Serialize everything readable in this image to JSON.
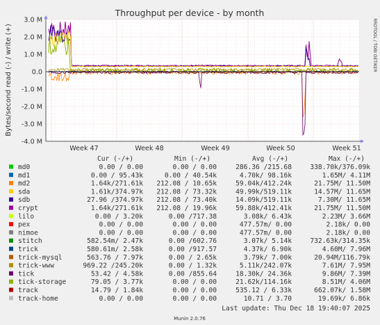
{
  "chart_data": {
    "type": "line",
    "title": "Throughput per device - by month",
    "ylabel": "Bytes/second read (-) / write (+)",
    "side_label": "RRDTOOL / TOBI OETIKER",
    "y_ticks": [
      "3.0 M",
      "2.0 M",
      "1.0 M",
      "0.0",
      "-1.0 M",
      "-2.0 M",
      "-3.0 M",
      "-4.0 M"
    ],
    "ylim": [
      -4.0,
      3.0
    ],
    "x_ticks": [
      "Week 47",
      "Week 48",
      "Week 49",
      "Week 50",
      "Week 51"
    ],
    "grid": true,
    "columns": [
      "Cur (-/+)",
      "Min (-/+)",
      "Avg (-/+)",
      "Max (-/+)"
    ],
    "series": [
      {
        "name": "md0",
        "color": "#00cc00",
        "cur": "0.00 /  0.00",
        "min": "0.00 /  0.00",
        "avg": "286.36 /215.68",
        "max": "338.70k/376.09k"
      },
      {
        "name": "md1",
        "color": "#0066b3",
        "cur": "0.00 / 95.43k",
        "min": "0.00 / 40.54k",
        "avg": "4.70k/ 98.16k",
        "max": "1.65M/  4.11M"
      },
      {
        "name": "md2",
        "color": "#ff8000",
        "cur": "1.64k/271.61k",
        "min": "212.08 / 10.65k",
        "avg": "59.04k/412.24k",
        "max": "21.75M/ 11.50M"
      },
      {
        "name": "sda",
        "color": "#ffcc00",
        "cur": "1.61k/374.97k",
        "min": "212.08 / 73.32k",
        "avg": "49.99k/519.11k",
        "max": "14.57M/ 11.65M"
      },
      {
        "name": "sdb",
        "color": "#330099",
        "cur": "27.96 /374.97k",
        "min": "212.08 / 73.40k",
        "avg": "14.09k/519.11k",
        "max": "7.30M/ 11.65M"
      },
      {
        "name": "crypt",
        "color": "#990099",
        "cur": "1.64k/271.61k",
        "min": "212.08 / 19.96k",
        "avg": "59.88k/412.41k",
        "max": "21.75M/ 11.50M"
      },
      {
        "name": "lilo",
        "color": "#ccff00",
        "cur": "0.00 /  3.20k",
        "min": "0.00 /717.38",
        "avg": "3.08k/  6.43k",
        "max": "2.23M/  3.66M"
      },
      {
        "name": "pex",
        "color": "#ff0000",
        "cur": "0.00 /  0.00",
        "min": "0.00 /  0.00",
        "avg": "477.57m/  0.00",
        "max": "2.18k/  0.00"
      },
      {
        "name": "nimoe",
        "color": "#808080",
        "cur": "0.00 /  0.00",
        "min": "0.00 /  0.00",
        "avg": "477.57m/  0.00",
        "max": "2.18k/  0.00"
      },
      {
        "name": "stitch",
        "color": "#008f00",
        "cur": "582.54m/  2.47k",
        "min": "0.00 /602.76",
        "avg": "3.07k/  5.14k",
        "max": "732.63k/314.35k"
      },
      {
        "name": "trick",
        "color": "#00487d",
        "cur": "580.61m/  2.58k",
        "min": "0.00 /917.57",
        "avg": "4.37k/  6.90k",
        "max": "4.60M/  7.96M"
      },
      {
        "name": "trick-mysql",
        "color": "#b35a00",
        "cur": "563.76 /  7.97k",
        "min": "0.00 /  2.65k",
        "avg": "3.79k/  7.00k",
        "max": "20.94M/116.79k"
      },
      {
        "name": "trick-www",
        "color": "#b38f00",
        "cur": "969.22 /245.20k",
        "min": "0.00 /  1.32k",
        "avg": "5.11k/242.07k",
        "max": "7.61M/  7.95M"
      },
      {
        "name": "tick",
        "color": "#6b006b",
        "cur": "53.42 /  4.58k",
        "min": "0.00 /855.64",
        "avg": "18.30k/ 24.36k",
        "max": "9.86M/  7.39M"
      },
      {
        "name": "tick-storage",
        "color": "#8fb300",
        "cur": "79.05 /  3.77k",
        "min": "0.00 /  0.00",
        "avg": "21.62k/114.16k",
        "max": "8.51M/  4.06M"
      },
      {
        "name": "track",
        "color": "#b30000",
        "cur": "14.79 /  1.84k",
        "min": "0.00 /  0.00",
        "avg": "535.12 /  6.33k",
        "max": "662.07k/  1.58M"
      },
      {
        "name": "track-home",
        "color": "#bebebe",
        "cur": "0.00 /  0.00",
        "min": "0.00 /  0.00",
        "avg": "10.71 /  3.70",
        "max": "19.69k/  6.86k"
      }
    ],
    "last_update": "Last update: Thu Dec 18 19:40:07 2025",
    "footer": "Munin 2.0.76"
  }
}
